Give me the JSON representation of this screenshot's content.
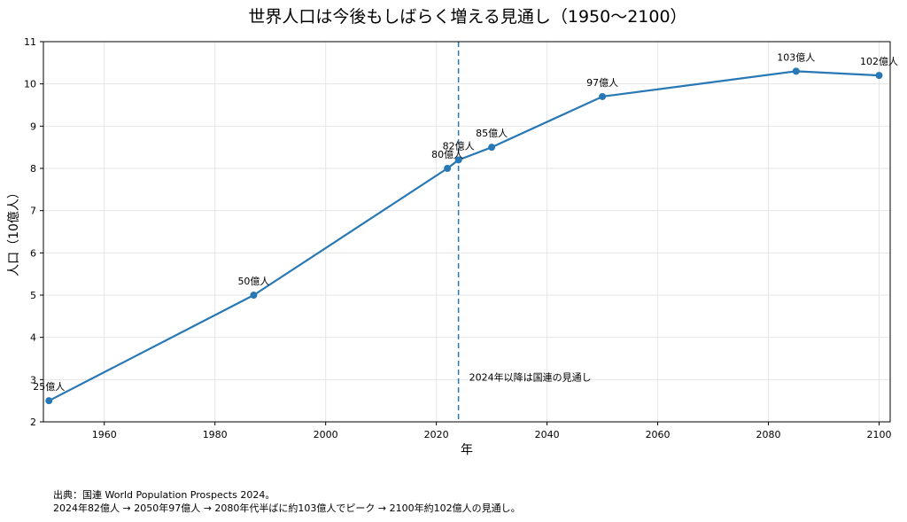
{
  "chart_data": {
    "type": "line",
    "title": "世界人口は今後もしばらく増える見通し（1950〜2100）",
    "xlabel": "年",
    "ylabel": "人口（10億人）",
    "xlim": [
      1949,
      2102
    ],
    "ylim": [
      2,
      11
    ],
    "x_ticks": [
      1960,
      1980,
      2000,
      2020,
      2040,
      2060,
      2080,
      2100
    ],
    "y_ticks": [
      2,
      3,
      4,
      5,
      6,
      7,
      8,
      9,
      10,
      11
    ],
    "grid": true,
    "line_color": "#2878b5",
    "series": [
      {
        "x": [
          1950,
          1987,
          2022,
          2024,
          2030,
          2050,
          2085,
          2100
        ],
        "values": [
          2.5,
          5.0,
          8.0,
          8.2,
          8.5,
          9.7,
          10.3,
          10.2
        ],
        "labels": [
          "25億人",
          "50億人",
          "80億人",
          "82億人",
          "85億人",
          "97億人",
          "103億人",
          "102億人"
        ]
      }
    ],
    "vline": {
      "x": 2024,
      "style": "dashed",
      "label": "2024年以降は国連の見通し"
    }
  },
  "footnote": {
    "line1": "出典：国連 World Population Prospects 2024。",
    "line2": "2024年82億人 → 2050年97億人 → 2080年代半ばに約103億人でピーク → 2100年約102億人の見通し。"
  }
}
